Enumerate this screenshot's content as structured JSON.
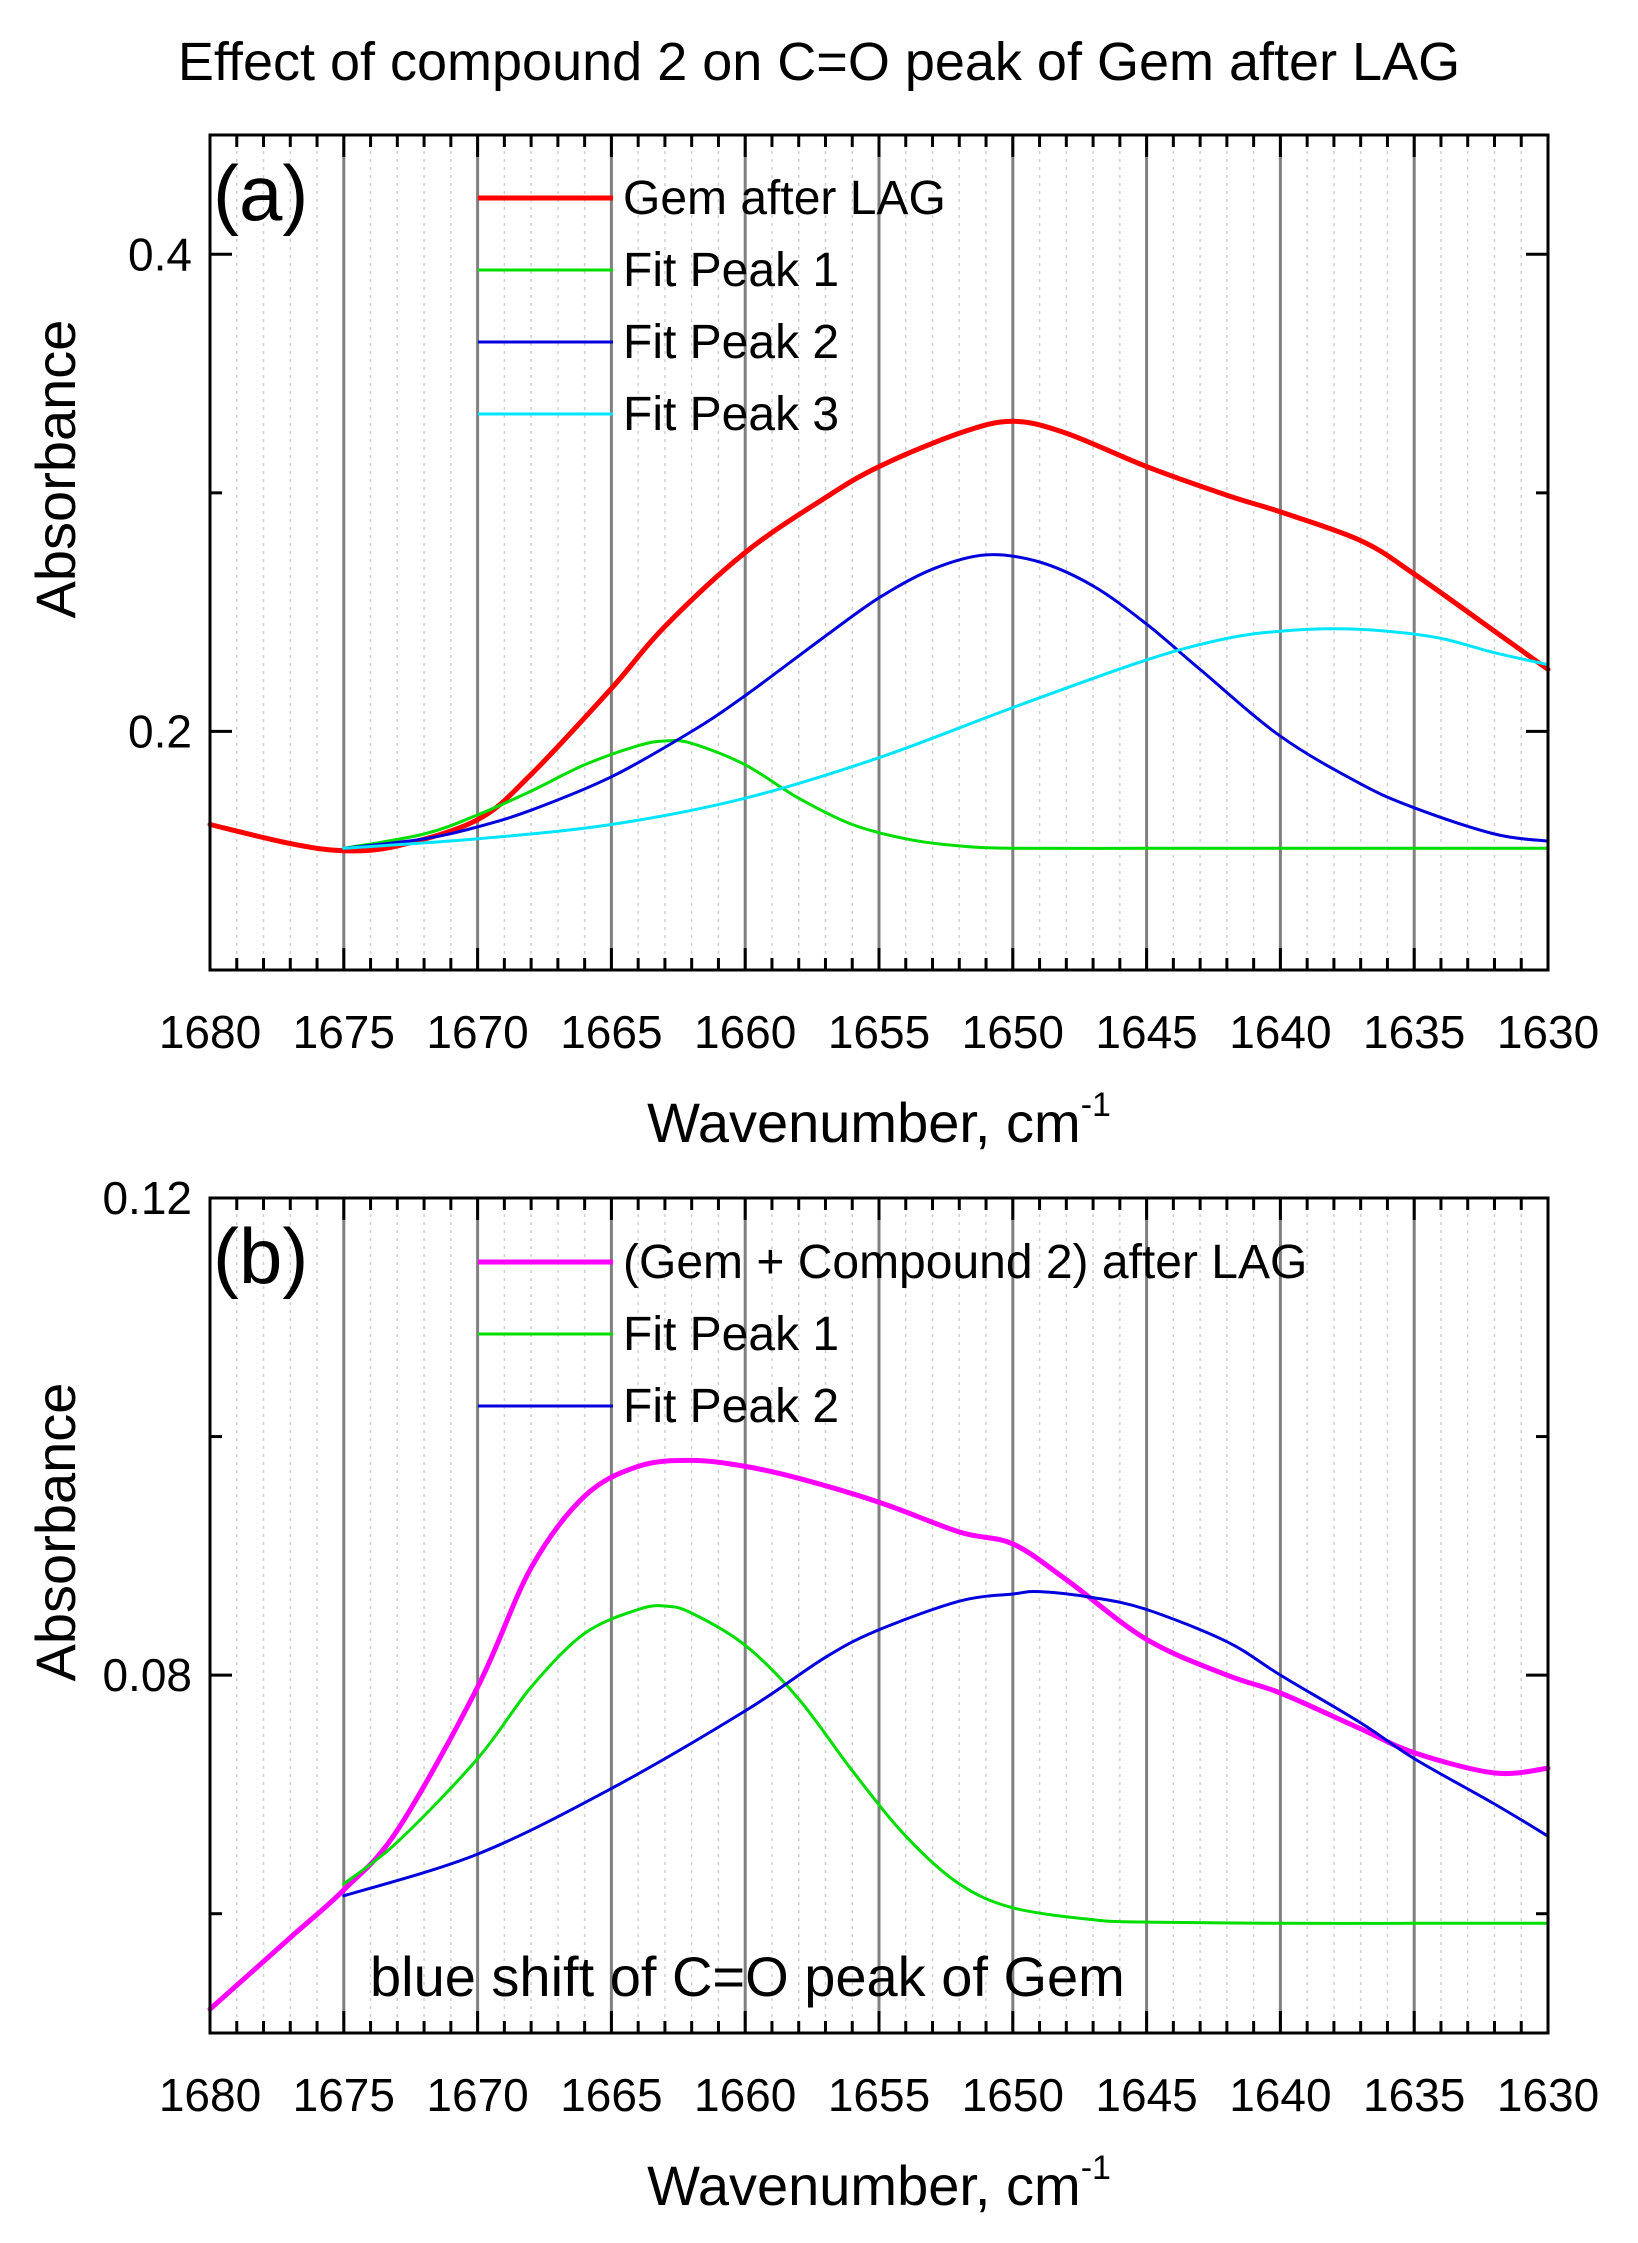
{
  "figure_title": "Effect of compound 2 on C=O peak of Gem after LAG",
  "chart_data": [
    {
      "type": "line",
      "panel_label": "(a)",
      "xlabel": "Wavenumber, cm",
      "xlabel_sup": "-1",
      "ylabel": "Absorbance",
      "xlim": [
        1680,
        1630
      ],
      "ylim": [
        0.1,
        0.45
      ],
      "x_major_ticks": [
        1680,
        1675,
        1670,
        1665,
        1660,
        1655,
        1650,
        1645,
        1640,
        1635,
        1630
      ],
      "x_tick_labels": [
        "1680",
        "1675",
        "1670",
        "1665",
        "1660",
        "1655",
        "1650",
        "1645",
        "1640",
        "1635",
        "1630"
      ],
      "y_ticks": [
        0.2,
        0.4
      ],
      "y_tick_labels": [
        "0.2",
        "0.4"
      ],
      "grid": "vertical",
      "legend_position": "top-center",
      "series": [
        {
          "name": "Gem after LAG",
          "color": "#ff0000",
          "width": 5,
          "x": [
            1680,
            1677,
            1675,
            1673,
            1670,
            1668,
            1665,
            1663,
            1660,
            1657,
            1655,
            1652,
            1650,
            1648,
            1645,
            1642,
            1640,
            1637,
            1635,
            1632,
            1630
          ],
          "y": [
            0.161,
            0.153,
            0.15,
            0.152,
            0.163,
            0.182,
            0.218,
            0.244,
            0.275,
            0.298,
            0.311,
            0.325,
            0.33,
            0.325,
            0.311,
            0.299,
            0.292,
            0.28,
            0.266,
            0.242,
            0.226
          ]
        },
        {
          "name": "Fit Peak 1",
          "color": "#00dd00",
          "width": 3,
          "x": [
            1675,
            1672,
            1670,
            1668,
            1666,
            1664,
            1663,
            1662,
            1660,
            1658,
            1656,
            1654,
            1652,
            1650,
            1645,
            1640,
            1635,
            1630
          ],
          "y": [
            0.151,
            0.157,
            0.165,
            0.175,
            0.186,
            0.194,
            0.196,
            0.195,
            0.186,
            0.172,
            0.161,
            0.155,
            0.152,
            0.151,
            0.151,
            0.151,
            0.151,
            0.151
          ]
        },
        {
          "name": "Fit Peak 2",
          "color": "#0000dd",
          "width": 3,
          "x": [
            1675,
            1672,
            1670,
            1668,
            1665,
            1662,
            1660,
            1657,
            1655,
            1653,
            1651,
            1649,
            1647,
            1645,
            1643,
            1640,
            1637,
            1635,
            1632,
            1630
          ],
          "y": [
            0.151,
            0.155,
            0.16,
            0.167,
            0.181,
            0.2,
            0.215,
            0.24,
            0.256,
            0.268,
            0.274,
            0.271,
            0.261,
            0.245,
            0.226,
            0.198,
            0.178,
            0.168,
            0.157,
            0.154
          ]
        },
        {
          "name": "Fit Peak 3",
          "color": "#00e5ff",
          "width": 3,
          "x": [
            1675,
            1670,
            1665,
            1660,
            1655,
            1650,
            1645,
            1642,
            1640,
            1638,
            1636,
            1634,
            1632,
            1630
          ],
          "y": [
            0.151,
            0.155,
            0.161,
            0.172,
            0.189,
            0.21,
            0.23,
            0.239,
            0.242,
            0.243,
            0.242,
            0.239,
            0.233,
            0.228
          ]
        }
      ]
    },
    {
      "type": "line",
      "panel_label": "(b)",
      "xlabel": "Wavenumber, cm",
      "xlabel_sup": "-1",
      "ylabel": "Absorbance",
      "xlim": [
        1680,
        1630
      ],
      "ylim": [
        0.05,
        0.12
      ],
      "x_major_ticks": [
        1680,
        1675,
        1670,
        1665,
        1660,
        1655,
        1650,
        1645,
        1640,
        1635,
        1630
      ],
      "x_tick_labels": [
        "1680",
        "1675",
        "1670",
        "1665",
        "1660",
        "1655",
        "1650",
        "1645",
        "1640",
        "1635",
        "1630"
      ],
      "y_ticks": [
        0.08,
        0.12
      ],
      "y_tick_labels": [
        "0.08",
        "0.12"
      ],
      "grid": "vertical",
      "legend_position": "top-center",
      "annotation": "blue shift of C=O peak of Gem",
      "series": [
        {
          "name": "(Gem + Compound 2) after LAG",
          "color": "#ff00ff",
          "width": 5,
          "x": [
            1680,
            1677,
            1675,
            1673,
            1670,
            1668,
            1666,
            1664,
            1662,
            1660,
            1658,
            1655,
            1652,
            1650,
            1648,
            1645,
            1642,
            1640,
            1637,
            1635,
            1632,
            1630
          ],
          "y": [
            0.052,
            0.058,
            0.062,
            0.067,
            0.079,
            0.089,
            0.095,
            0.0975,
            0.098,
            0.0975,
            0.0965,
            0.0945,
            0.092,
            0.091,
            0.088,
            0.083,
            0.08,
            0.0785,
            0.0755,
            0.0735,
            0.0718,
            0.0722
          ]
        },
        {
          "name": "Fit Peak 1",
          "color": "#00dd00",
          "width": 3,
          "x": [
            1675,
            1673,
            1670,
            1668,
            1666,
            1664,
            1663,
            1662,
            1660,
            1658,
            1656,
            1654,
            1652,
            1650,
            1647,
            1645,
            1640,
            1635,
            1630
          ],
          "y": [
            0.0625,
            0.066,
            0.073,
            0.079,
            0.0835,
            0.0855,
            0.0858,
            0.0852,
            0.0825,
            0.078,
            0.072,
            0.0665,
            0.0625,
            0.0605,
            0.0595,
            0.0593,
            0.0592,
            0.0592,
            0.0592
          ]
        },
        {
          "name": "Fit Peak 2",
          "color": "#0000dd",
          "width": 3,
          "x": [
            1675,
            1670,
            1665,
            1660,
            1657,
            1655,
            1652,
            1650,
            1649,
            1647,
            1645,
            1642,
            1640,
            1637,
            1635,
            1632,
            1630
          ],
          "y": [
            0.0615,
            0.065,
            0.0705,
            0.077,
            0.0815,
            0.0838,
            0.0862,
            0.0868,
            0.087,
            0.0865,
            0.0855,
            0.0828,
            0.08,
            0.076,
            0.073,
            0.0692,
            0.0665
          ]
        }
      ]
    }
  ]
}
